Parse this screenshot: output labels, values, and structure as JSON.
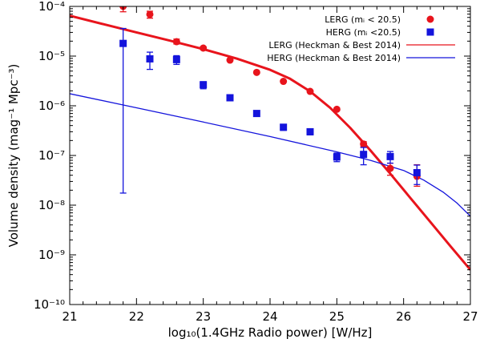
{
  "chart_data": {
    "type": "scatter",
    "xlabel": "log₁₀(1.4GHz Radio power) [W/Hz]",
    "ylabel": "Volume density (mag⁻¹ Mpc⁻³)",
    "xlim": [
      21,
      27
    ],
    "ylim_log10": [
      -10,
      -4
    ],
    "x_scale": "linear",
    "y_scale": "log",
    "x_ticks": [
      21,
      22,
      23,
      24,
      25,
      26,
      27
    ],
    "x_tick_labels": [
      "21",
      "22",
      "23",
      "24",
      "25",
      "26",
      "27"
    ],
    "y_ticks_log10": [
      -10,
      -9,
      -8,
      -7,
      -6,
      -5,
      -4
    ],
    "y_tick_labels": [
      "10⁻¹⁰",
      "10⁻⁹",
      "10⁻⁸",
      "10⁻⁷",
      "10⁻⁶",
      "10⁻⁵",
      "10⁻⁴"
    ],
    "legend_position": "top-right",
    "series": [
      {
        "name": "LERG (mᵢ < 20.5)",
        "kind": "points",
        "marker": "circle",
        "color": "#e8141c",
        "points": [
          {
            "x": 21.8,
            "y": 0.0001,
            "err_lo": 7.8e-05,
            "err_hi": 0.00012
          },
          {
            "x": 22.2,
            "y": 6.9e-05,
            "err_lo": 5.8e-05,
            "err_hi": 8e-05
          },
          {
            "x": 22.6,
            "y": 1.95e-05,
            "err_lo": 1.75e-05,
            "err_hi": 2.2e-05
          },
          {
            "x": 23.0,
            "y": 1.45e-05,
            "err_lo": 1.35e-05,
            "err_hi": 1.55e-05
          },
          {
            "x": 23.4,
            "y": 8.3e-06,
            "err_lo": 8e-06,
            "err_hi": 8.6e-06
          },
          {
            "x": 23.8,
            "y": 4.7e-06,
            "err_lo": 4.5e-06,
            "err_hi": 4.9e-06
          },
          {
            "x": 24.2,
            "y": 3.1e-06,
            "err_lo": 3e-06,
            "err_hi": 3.2e-06
          },
          {
            "x": 24.6,
            "y": 1.95e-06,
            "err_lo": 1.85e-06,
            "err_hi": 2.05e-06
          },
          {
            "x": 25.0,
            "y": 8.5e-07,
            "err_lo": 8e-07,
            "err_hi": 9e-07
          },
          {
            "x": 25.4,
            "y": 1.7e-07,
            "err_lo": 1.5e-07,
            "err_hi": 1.9e-07
          },
          {
            "x": 25.8,
            "y": 5.5e-08,
            "err_lo": 4e-08,
            "err_hi": 7e-08
          },
          {
            "x": 26.2,
            "y": 3.8e-08,
            "err_lo": 2.4e-08,
            "err_hi": 6.5e-08
          }
        ]
      },
      {
        "name": "HERG (mᵢ <20.5)",
        "kind": "points",
        "marker": "square",
        "color": "#1414dc",
        "points": [
          {
            "x": 21.8,
            "y": 1.8e-05,
            "err_lo": 1.75e-08,
            "err_hi": 3.6e-05
          },
          {
            "x": 22.2,
            "y": 8.8e-06,
            "err_lo": 5.4e-06,
            "err_hi": 1.2e-05
          },
          {
            "x": 22.6,
            "y": 8.5e-06,
            "err_lo": 6.8e-06,
            "err_hi": 1.02e-05
          },
          {
            "x": 23.0,
            "y": 2.65e-06,
            "err_lo": 2.2e-06,
            "err_hi": 3.05e-06
          },
          {
            "x": 23.4,
            "y": 1.45e-06,
            "err_lo": 1.3e-06,
            "err_hi": 1.6e-06
          },
          {
            "x": 23.8,
            "y": 7e-07,
            "err_lo": 6.6e-07,
            "err_hi": 7.5e-07
          },
          {
            "x": 24.2,
            "y": 3.7e-07,
            "err_lo": 3.2e-07,
            "err_hi": 4.2e-07
          },
          {
            "x": 24.6,
            "y": 3e-07,
            "err_lo": 2.6e-07,
            "err_hi": 3.4e-07
          },
          {
            "x": 25.0,
            "y": 9.3e-08,
            "err_lo": 7.5e-08,
            "err_hi": 1.12e-07
          },
          {
            "x": 25.4,
            "y": 1.05e-07,
            "err_lo": 6.5e-08,
            "err_hi": 1.45e-07
          },
          {
            "x": 25.8,
            "y": 9.5e-08,
            "err_lo": 7e-08,
            "err_hi": 1.2e-07
          },
          {
            "x": 26.2,
            "y": 4.5e-08,
            "err_lo": 2.6e-08,
            "err_hi": 6.4e-08
          }
        ]
      },
      {
        "name": "LERG (Heckman & Best 2014)",
        "kind": "line",
        "color": "#e8141c",
        "width": "thick",
        "points": [
          {
            "x": 21.0,
            "y": 6.5e-05
          },
          {
            "x": 21.5,
            "y": 4.4e-05
          },
          {
            "x": 22.0,
            "y": 3e-05
          },
          {
            "x": 22.5,
            "y": 2.05e-05
          },
          {
            "x": 23.0,
            "y": 1.38e-05
          },
          {
            "x": 23.5,
            "y": 8.9e-06
          },
          {
            "x": 24.0,
            "y": 5.3e-06
          },
          {
            "x": 24.3,
            "y": 3.5e-06
          },
          {
            "x": 24.6,
            "y": 1.95e-06
          },
          {
            "x": 24.9,
            "y": 9.1e-07
          },
          {
            "x": 25.2,
            "y": 3.6e-07
          },
          {
            "x": 25.5,
            "y": 1.28e-07
          },
          {
            "x": 25.8,
            "y": 4.3e-08
          },
          {
            "x": 26.1,
            "y": 1.4e-08
          },
          {
            "x": 26.4,
            "y": 4.6e-09
          },
          {
            "x": 26.7,
            "y": 1.5e-09
          },
          {
            "x": 27.0,
            "y": 5e-10
          }
        ]
      },
      {
        "name": "HERG (Heckman & Best 2014)",
        "kind": "line",
        "color": "#1414dc",
        "width": "thin",
        "points": [
          {
            "x": 21.0,
            "y": 1.75e-06
          },
          {
            "x": 22.0,
            "y": 9.1e-07
          },
          {
            "x": 23.0,
            "y": 4.7e-07
          },
          {
            "x": 24.0,
            "y": 2.4e-07
          },
          {
            "x": 25.0,
            "y": 1.18e-07
          },
          {
            "x": 25.5,
            "y": 8e-08
          },
          {
            "x": 26.0,
            "y": 5e-08
          },
          {
            "x": 26.3,
            "y": 3.2e-08
          },
          {
            "x": 26.6,
            "y": 1.8e-08
          },
          {
            "x": 26.8,
            "y": 1.1e-08
          },
          {
            "x": 27.0,
            "y": 6e-09
          }
        ]
      }
    ]
  }
}
